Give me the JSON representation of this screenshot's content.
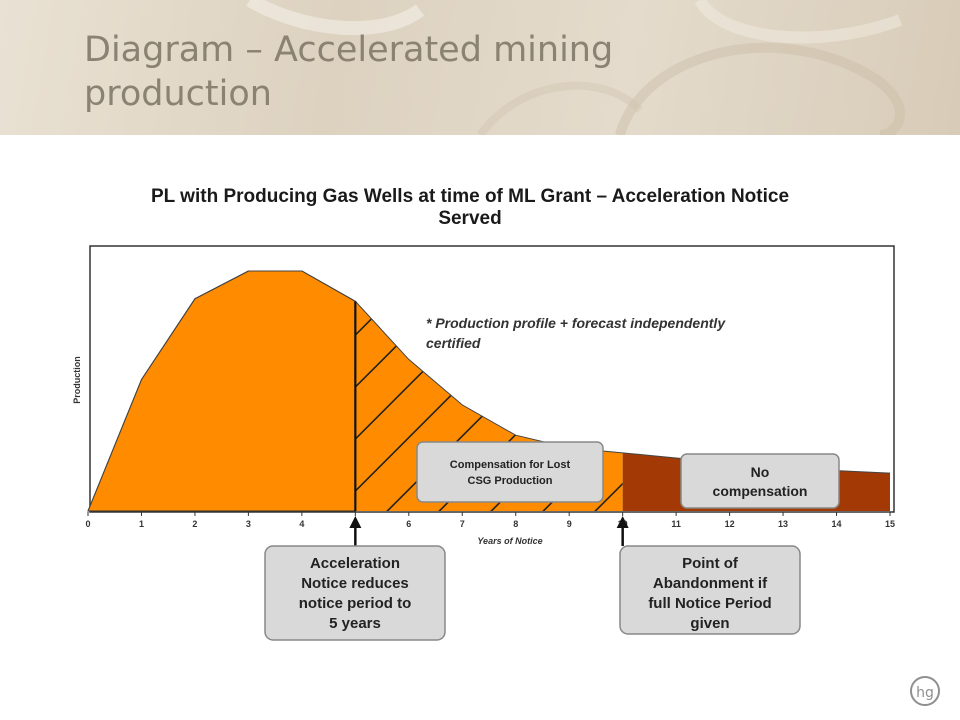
{
  "slide": {
    "title": "Diagram – Accelerated mining production",
    "logo_text": "hg"
  },
  "chart_data": {
    "type": "area",
    "title": "PL with Producing Gas Wells at time of ML Grant – Acceleration Notice Served",
    "xlabel": "Years of Notice",
    "ylabel": "Production",
    "xlim": [
      0,
      15
    ],
    "x_ticks": [
      "0",
      "1",
      "2",
      "3",
      "4",
      "5",
      "6",
      "7",
      "8",
      "9",
      "10",
      "11",
      "12",
      "13",
      "14",
      "15"
    ],
    "profile": {
      "x": [
        0,
        1,
        2,
        3,
        4,
        5,
        6,
        7,
        8,
        9,
        10,
        11,
        12,
        13,
        14,
        15
      ],
      "y": [
        0,
        0.52,
        0.84,
        0.95,
        0.95,
        0.83,
        0.6,
        0.42,
        0.3,
        0.25,
        0.23,
        0.21,
        0.19,
        0.17,
        0.16,
        0.15
      ]
    },
    "acceleration_year": 5,
    "abandonment_year": 10,
    "annotation": "* Production profile + forecast independently certified",
    "regions": [
      {
        "label": "Compensation for Lost CSG Production",
        "from": 5,
        "to": 10,
        "color": "#ff8c00",
        "hatched": true
      },
      {
        "label": "No compensation",
        "from": 10,
        "to": 15,
        "color": "#a33a05",
        "hatched": false
      }
    ],
    "callouts": [
      {
        "lines": [
          "Acceleration",
          "Notice reduces",
          "notice period to",
          "5 years"
        ],
        "x": 5
      },
      {
        "lines": [
          "Point of",
          "Abandonment if",
          "full Notice Period",
          "given"
        ],
        "x": 10
      }
    ],
    "colors": {
      "production": "#ff8c00",
      "no_compensation": "#a33a05",
      "callout_fill": "#d9d9d9"
    }
  }
}
